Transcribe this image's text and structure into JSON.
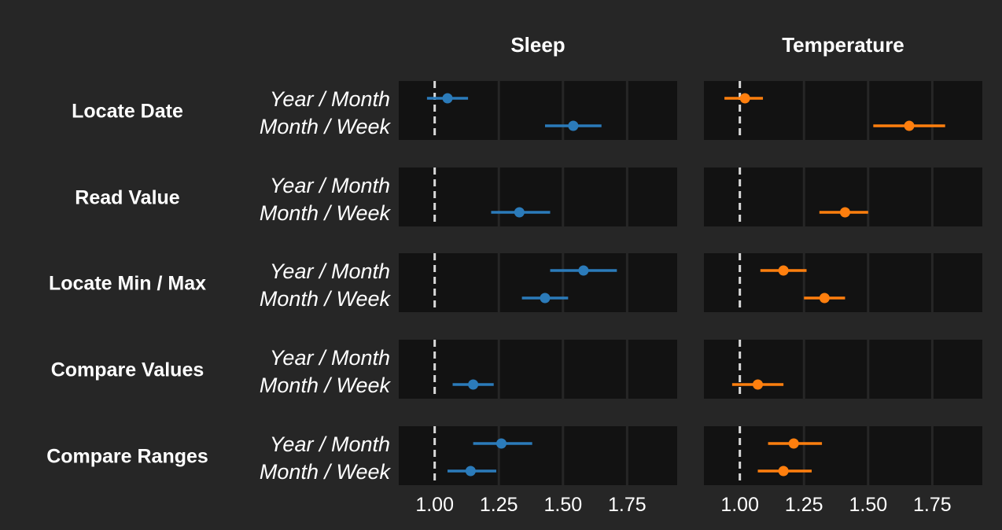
{
  "chart_data": {
    "type": "scatter",
    "description_free": true,
    "facets": [
      "Sleep",
      "Temperature"
    ],
    "rows": [
      "Locate Date",
      "Read Value",
      "Locate Min / Max",
      "Compare Values",
      "Compare Ranges"
    ],
    "granularities": [
      "Year / Month",
      "Month / Week"
    ],
    "xlim": [
      0.86,
      1.945
    ],
    "x_ticks": [
      1.0,
      1.25,
      1.5,
      1.75
    ],
    "x_tick_labels": [
      "1.00",
      "1.25",
      "1.50",
      "1.75"
    ],
    "reference_line": 1.0,
    "grid": true,
    "colors": {
      "Sleep": "#2b7bba",
      "Temperature": "#ff7f0e",
      "background": "#262626",
      "panel": "#121212",
      "grid": "#262626",
      "reference": "#d9d9d9"
    },
    "points": [
      {
        "facet": "Sleep",
        "row": "Locate Date",
        "granularity": "Year / Month",
        "x": 1.05,
        "lo": 0.97,
        "hi": 1.13
      },
      {
        "facet": "Sleep",
        "row": "Locate Date",
        "granularity": "Month / Week",
        "x": 1.54,
        "lo": 1.43,
        "hi": 1.65
      },
      {
        "facet": "Sleep",
        "row": "Read Value",
        "granularity": "Month / Week",
        "x": 1.33,
        "lo": 1.22,
        "hi": 1.45
      },
      {
        "facet": "Sleep",
        "row": "Locate Min / Max",
        "granularity": "Year / Month",
        "x": 1.58,
        "lo": 1.45,
        "hi": 1.71
      },
      {
        "facet": "Sleep",
        "row": "Locate Min / Max",
        "granularity": "Month / Week",
        "x": 1.43,
        "lo": 1.34,
        "hi": 1.52
      },
      {
        "facet": "Sleep",
        "row": "Compare Values",
        "granularity": "Month / Week",
        "x": 1.15,
        "lo": 1.07,
        "hi": 1.23
      },
      {
        "facet": "Sleep",
        "row": "Compare Ranges",
        "granularity": "Year / Month",
        "x": 1.26,
        "lo": 1.15,
        "hi": 1.38
      },
      {
        "facet": "Sleep",
        "row": "Compare Ranges",
        "granularity": "Month / Week",
        "x": 1.14,
        "lo": 1.05,
        "hi": 1.24
      },
      {
        "facet": "Temperature",
        "row": "Locate Date",
        "granularity": "Year / Month",
        "x": 1.02,
        "lo": 0.94,
        "hi": 1.09
      },
      {
        "facet": "Temperature",
        "row": "Locate Date",
        "granularity": "Month / Week",
        "x": 1.66,
        "lo": 1.52,
        "hi": 1.8
      },
      {
        "facet": "Temperature",
        "row": "Read Value",
        "granularity": "Month / Week",
        "x": 1.41,
        "lo": 1.31,
        "hi": 1.5
      },
      {
        "facet": "Temperature",
        "row": "Locate Min / Max",
        "granularity": "Year / Month",
        "x": 1.17,
        "lo": 1.08,
        "hi": 1.26
      },
      {
        "facet": "Temperature",
        "row": "Locate Min / Max",
        "granularity": "Month / Week",
        "x": 1.33,
        "lo": 1.25,
        "hi": 1.41
      },
      {
        "facet": "Temperature",
        "row": "Compare Values",
        "granularity": "Month / Week",
        "x": 1.07,
        "lo": 0.97,
        "hi": 1.17
      },
      {
        "facet": "Temperature",
        "row": "Compare Ranges",
        "granularity": "Year / Month",
        "x": 1.21,
        "lo": 1.11,
        "hi": 1.32
      },
      {
        "facet": "Temperature",
        "row": "Compare Ranges",
        "granularity": "Month / Week",
        "x": 1.17,
        "lo": 1.07,
        "hi": 1.28
      }
    ]
  }
}
